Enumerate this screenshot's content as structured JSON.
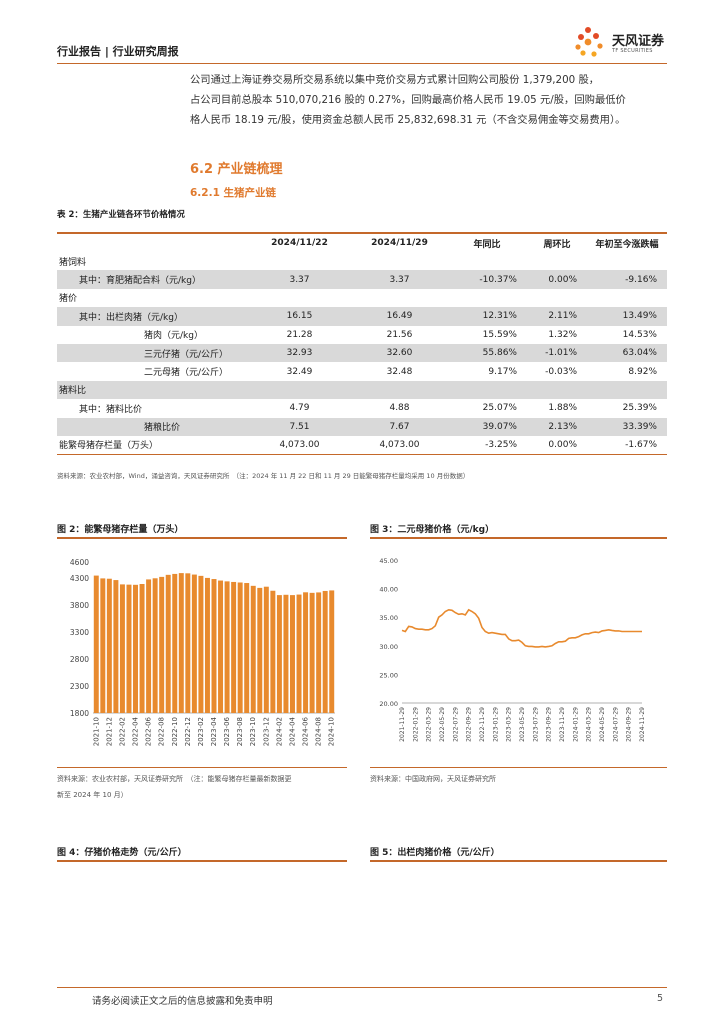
{
  "header": {
    "text": "行业报告 | 行业研究周报"
  },
  "logo": {
    "cn": "天风证券",
    "en": "TF SECURITIES"
  },
  "paragraph": {
    "line1": "公司通过上海证券交易所交易系统以集中竞价交易方式累计回购公司股份 1,379,200 股，",
    "line2": "占公司目前总股本 510,070,216 股的 0.27%，回购最高价格人民币 19.05 元/股，回购最低价",
    "line3": "格人民币 18.19 元/股，使用资金总额人民币 25,832,698.31 元（不含交易佣金等交易费用）。"
  },
  "section": {
    "h2": "6.2 产业链梳理",
    "h3": "6.2.1 生猪产业链"
  },
  "table": {
    "caption": "表 2：生猪产业链各环节价格情况",
    "headers": [
      "",
      "2024/11/22",
      "2024/11/29",
      "年同比",
      "周环比",
      "年初至今涨跌幅"
    ],
    "rows": [
      {
        "label": "猪饲料",
        "indent": 0,
        "shade": false,
        "v1": "",
        "v2": "",
        "yoy": "",
        "wow": "",
        "ytd": ""
      },
      {
        "label": "其中：育肥猪配合料（元/kg）",
        "indent": 1,
        "shade": true,
        "v1": "3.37",
        "v2": "3.37",
        "yoy": "-10.37%",
        "wow": "0.00%",
        "ytd": "-9.16%"
      },
      {
        "label": "猪价",
        "indent": 0,
        "shade": false,
        "v1": "",
        "v2": "",
        "yoy": "",
        "wow": "",
        "ytd": ""
      },
      {
        "label": "其中：出栏肉猪（元/kg）",
        "indent": 1,
        "shade": true,
        "v1": "16.15",
        "v2": "16.49",
        "yoy": "12.31%",
        "wow": "2.11%",
        "ytd": "13.49%"
      },
      {
        "label": "猪肉（元/kg）",
        "indent": 2,
        "shade": false,
        "v1": "21.28",
        "v2": "21.56",
        "yoy": "15.59%",
        "wow": "1.32%",
        "ytd": "14.53%"
      },
      {
        "label": "三元仔猪（元/公斤）",
        "indent": 2,
        "shade": true,
        "v1": "32.93",
        "v2": "32.60",
        "yoy": "55.86%",
        "wow": "-1.01%",
        "ytd": "63.04%"
      },
      {
        "label": "二元母猪（元/公斤）",
        "indent": 2,
        "shade": false,
        "v1": "32.49",
        "v2": "32.48",
        "yoy": "9.17%",
        "wow": "-0.03%",
        "ytd": "8.92%"
      },
      {
        "label": "猪料比",
        "indent": 0,
        "shade": true,
        "v1": "",
        "v2": "",
        "yoy": "",
        "wow": "",
        "ytd": ""
      },
      {
        "label": "其中：猪料比价",
        "indent": 1,
        "shade": false,
        "v1": "4.79",
        "v2": "4.88",
        "yoy": "25.07%",
        "wow": "1.88%",
        "ytd": "25.39%"
      },
      {
        "label": "猪粮比价",
        "indent": 2,
        "shade": true,
        "v1": "7.51",
        "v2": "7.67",
        "yoy": "39.07%",
        "wow": "2.13%",
        "ytd": "33.39%"
      },
      {
        "label": "能繁母猪存栏量（万头）",
        "indent": 0,
        "shade": false,
        "v1": "4,073.00",
        "v2": "4,073.00",
        "yoy": "-3.25%",
        "wow": "0.00%",
        "ytd": "-1.67%"
      }
    ],
    "source": "资料来源：农业农村部，Wind，涌益咨询，天风证券研究所　（注：2024 年 11 月 22 日和 11 月 29 日能繁母猪存栏量均采用 10 月份数据）"
  },
  "fig2": {
    "caption": "图 2：能繁母猪存栏量（万头）",
    "source_line1": "资料来源：农业农村部，天风证券研究所　（注：能繁母猪存栏量最新数据更",
    "source_line2": "新至 2024 年 10 月）",
    "chart_data": {
      "type": "bar",
      "color": "#e88a2e",
      "ylim": [
        1800,
        4600
      ],
      "yticks": [
        "1800",
        "2300",
        "2800",
        "3300",
        "3800",
        "4300",
        "4600"
      ],
      "ytick_values": [
        1800,
        2300,
        2800,
        3300,
        3800,
        4300,
        4600
      ],
      "xtick_labels": [
        "2021-10",
        "2021-12",
        "2022-02",
        "2022-04",
        "2022-06",
        "2022-08",
        "2022-10",
        "2022-12",
        "2023-02",
        "2023-04",
        "2023-06",
        "2023-08",
        "2023-10",
        "2023-12",
        "2024-02",
        "2024-04",
        "2024-06",
        "2024-08",
        "2024-10"
      ],
      "categories": [
        "2021-10",
        "2021-11",
        "2021-12",
        "2022-01",
        "2022-02",
        "2022-03",
        "2022-04",
        "2022-05",
        "2022-06",
        "2022-07",
        "2022-08",
        "2022-09",
        "2022-10",
        "2022-11",
        "2022-12",
        "2023-01",
        "2023-02",
        "2023-03",
        "2023-04",
        "2023-05",
        "2023-06",
        "2023-07",
        "2023-08",
        "2023-09",
        "2023-10",
        "2023-11",
        "2023-12",
        "2024-01",
        "2024-02",
        "2024-03",
        "2024-04",
        "2024-05",
        "2024-06",
        "2024-07",
        "2024-08",
        "2024-09",
        "2024-10"
      ],
      "values": [
        4348,
        4296,
        4290,
        4265,
        4185,
        4180,
        4177,
        4192,
        4277,
        4298,
        4324,
        4362,
        4379,
        4394,
        4390,
        4367,
        4343,
        4305,
        4284,
        4256,
        4241,
        4230,
        4220,
        4210,
        4158,
        4120,
        4142,
        4067,
        3986,
        3992,
        3986,
        3996,
        4038,
        4028,
        4036,
        4063,
        4073
      ]
    }
  },
  "fig3": {
    "caption": "图 3：二元母猪价格（元/kg）",
    "source": "资料来源：中国政府网，天风证券研究所",
    "chart_data": {
      "type": "line",
      "color": "#e88a2e",
      "ylim": [
        20,
        45
      ],
      "yticks": [
        "20.00",
        "25.00",
        "30.00",
        "35.00",
        "40.00",
        "45.00"
      ],
      "ytick_values": [
        20,
        25,
        30,
        35,
        40,
        45
      ],
      "xtick_labels": [
        "2021-11-29",
        "2022-01-29",
        "2022-03-29",
        "2022-05-29",
        "2022-07-29",
        "2022-09-29",
        "2022-11-29",
        "2023-01-29",
        "2023-03-29",
        "2023-05-29",
        "2023-07-29",
        "2023-09-29",
        "2023-11-29",
        "2024-01-29",
        "2024-03-29",
        "2024-05-29",
        "2024-07-29",
        "2024-09-29",
        "2024-11-29"
      ],
      "x_span": [
        0,
        36
      ],
      "x": [
        0,
        0.5,
        1,
        1.5,
        2,
        2.5,
        3,
        3.5,
        4,
        4.5,
        5,
        5.5,
        6,
        6.5,
        7,
        7.5,
        8,
        8.5,
        9,
        9.5,
        10,
        10.5,
        11,
        11.5,
        12,
        12.5,
        13,
        13.5,
        14,
        14.5,
        15,
        15.5,
        16,
        16.5,
        17,
        17.5,
        18,
        18.5,
        19,
        19.5,
        20,
        20.5,
        21,
        21.5,
        22,
        22.5,
        23,
        23.5,
        24,
        24.5,
        25,
        25.5,
        26,
        26.5,
        27,
        27.5,
        28,
        28.5,
        29,
        29.5,
        30,
        30.5,
        31,
        31.5,
        32,
        32.5,
        33,
        33.5,
        34,
        34.5,
        35,
        35.5,
        36
      ],
      "values": [
        32.7,
        32.5,
        33.4,
        33.3,
        33.0,
        32.9,
        32.9,
        32.8,
        32.8,
        33.0,
        33.5,
        35.0,
        35.4,
        36.0,
        36.3,
        36.2,
        35.8,
        35.5,
        35.6,
        35.4,
        36.3,
        36.0,
        35.6,
        34.8,
        33.2,
        32.5,
        32.2,
        32.3,
        32.2,
        32.1,
        32.0,
        32.0,
        31.2,
        30.9,
        30.9,
        31.0,
        30.6,
        30.0,
        29.9,
        29.9,
        29.8,
        29.8,
        29.9,
        29.8,
        29.9,
        30.0,
        30.4,
        30.7,
        30.7,
        30.8,
        31.3,
        31.4,
        31.4,
        31.6,
        31.9,
        32.1,
        32.1,
        32.3,
        32.4,
        32.3,
        32.6,
        32.7,
        32.8,
        32.7,
        32.6,
        32.6,
        32.5,
        32.5,
        32.5,
        32.5,
        32.5,
        32.5,
        32.5
      ]
    }
  },
  "fig4": {
    "caption": "图 4：仔猪价格走势（元/公斤）"
  },
  "fig5": {
    "caption": "图 5：出栏肉猪价格（元/公斤）"
  },
  "footer": {
    "text": "请务必阅读正文之后的信息披露和免责申明",
    "page": "5"
  }
}
